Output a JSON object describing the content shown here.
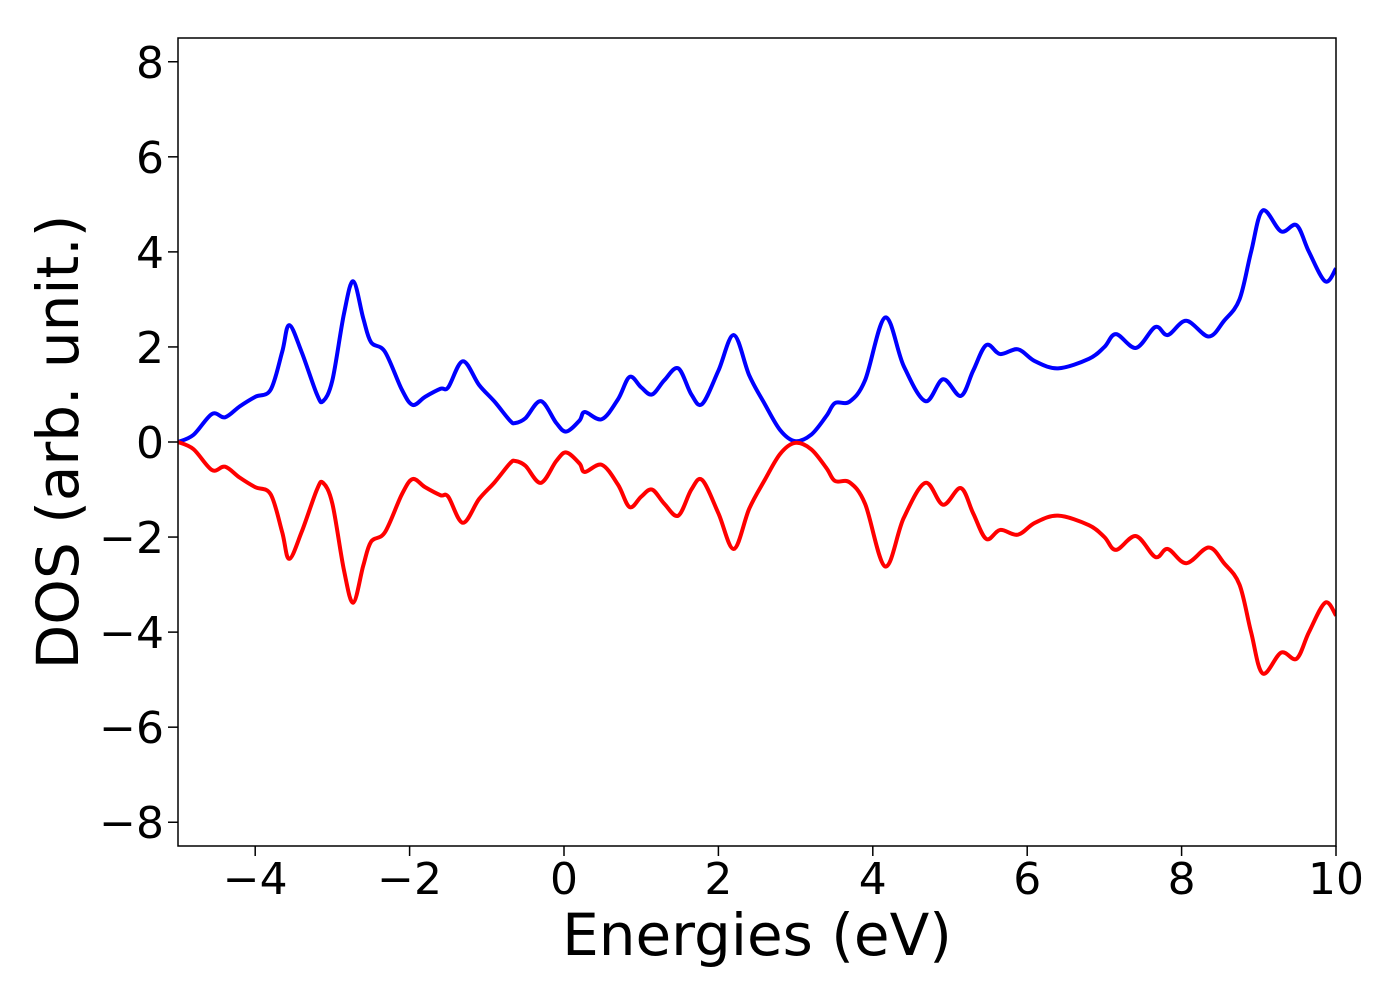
{
  "chart_data": {
    "type": "line",
    "x_label": "Energies (eV)",
    "y_label": "DOS (arb. unit.)",
    "x": [
      -5,
      -4.8,
      -4.56,
      -4.39,
      -4.2,
      -4.0,
      -3.8,
      -3.65,
      -3.56,
      -3.4,
      -3.2,
      -3.12,
      -3.0,
      -2.85,
      -2.73,
      -2.6,
      -2.5,
      -2.32,
      -2.1,
      -1.96,
      -1.8,
      -1.6,
      -1.5,
      -1.31,
      -1.1,
      -0.9,
      -0.7,
      -0.63,
      -0.5,
      -0.3,
      -0.1,
      0.03,
      0.2,
      0.27,
      0.49,
      0.7,
      0.85,
      1.0,
      1.14,
      1.3,
      1.48,
      1.65,
      1.79,
      2.0,
      2.2,
      2.4,
      2.6,
      2.8,
      2.99,
      3.2,
      3.4,
      3.51,
      3.7,
      3.9,
      4.16,
      4.4,
      4.68,
      4.91,
      5.14,
      5.3,
      5.47,
      5.65,
      5.88,
      6.1,
      6.4,
      6.8,
      7.0,
      7.15,
      7.41,
      7.66,
      7.82,
      8.06,
      8.35,
      8.55,
      8.75,
      8.9,
      9.05,
      9.29,
      9.49,
      9.65,
      9.86,
      10
    ],
    "series": [
      {
        "color": "#0000ff",
        "values": [
          0,
          0.15,
          0.59,
          0.52,
          0.75,
          0.95,
          1.1,
          1.9,
          2.46,
          1.9,
          1.0,
          0.86,
          1.3,
          2.7,
          3.38,
          2.6,
          2.1,
          1.9,
          1.1,
          0.78,
          0.95,
          1.12,
          1.15,
          1.7,
          1.2,
          0.85,
          0.45,
          0.4,
          0.5,
          0.86,
          0.4,
          0.22,
          0.45,
          0.63,
          0.48,
          0.9,
          1.37,
          1.15,
          1.0,
          1.3,
          1.55,
          1.0,
          0.8,
          1.5,
          2.25,
          1.4,
          0.8,
          0.25,
          0.02,
          0.15,
          0.55,
          0.82,
          0.85,
          1.3,
          2.62,
          1.6,
          0.86,
          1.32,
          0.97,
          1.5,
          2.04,
          1.85,
          1.95,
          1.7,
          1.55,
          1.75,
          2.0,
          2.27,
          1.98,
          2.42,
          2.25,
          2.55,
          2.22,
          2.55,
          3.0,
          4.0,
          4.87,
          4.43,
          4.56,
          4.0,
          3.38,
          3.65
        ]
      },
      {
        "color": "#ff0000",
        "values": [
          0,
          -0.15,
          -0.59,
          -0.52,
          -0.75,
          -0.95,
          -1.1,
          -1.9,
          -2.46,
          -1.9,
          -1.0,
          -0.86,
          -1.3,
          -2.7,
          -3.38,
          -2.6,
          -2.1,
          -1.9,
          -1.1,
          -0.78,
          -0.95,
          -1.12,
          -1.15,
          -1.7,
          -1.2,
          -0.85,
          -0.45,
          -0.4,
          -0.5,
          -0.86,
          -0.4,
          -0.22,
          -0.45,
          -0.63,
          -0.48,
          -0.9,
          -1.37,
          -1.15,
          -1.0,
          -1.3,
          -1.55,
          -1.0,
          -0.8,
          -1.5,
          -2.25,
          -1.4,
          -0.8,
          -0.25,
          -0.02,
          -0.15,
          -0.55,
          -0.82,
          -0.85,
          -1.3,
          -2.62,
          -1.6,
          -0.86,
          -1.32,
          -0.97,
          -1.5,
          -2.04,
          -1.85,
          -1.95,
          -1.7,
          -1.55,
          -1.75,
          -2.0,
          -2.27,
          -1.98,
          -2.42,
          -2.25,
          -2.55,
          -2.22,
          -2.55,
          -3.0,
          -4.0,
          -4.87,
          -4.43,
          -4.56,
          -4.0,
          -3.38,
          -3.65
        ]
      }
    ],
    "xlim": [
      -5,
      10
    ],
    "xticks": [
      {
        "value": -4,
        "label": "−4"
      },
      {
        "value": -2,
        "label": "−2"
      },
      0,
      2,
      4,
      6,
      8,
      10
    ],
    "ylim": [
      -8.5,
      8.5
    ],
    "yticks": [
      {
        "value": -8,
        "label": "−8"
      },
      {
        "value": -6,
        "label": "−6"
      },
      {
        "value": -4,
        "label": "−4"
      },
      {
        "value": -2,
        "label": "−2"
      },
      0,
      2,
      4,
      6,
      8
    ],
    "grid": false
  }
}
